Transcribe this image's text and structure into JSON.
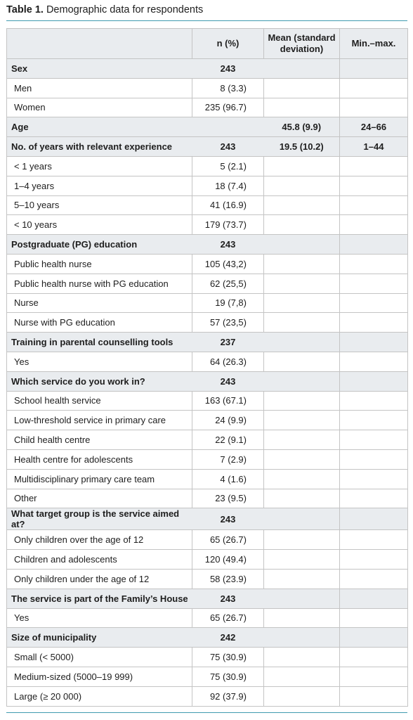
{
  "caption": {
    "label": "Table 1.",
    "text": "Demographic data for respondents"
  },
  "headers": [
    "",
    "n (%)",
    "Mean (standard deviation)",
    "Min.–max."
  ],
  "rows": [
    {
      "type": "cat",
      "label": "Sex",
      "n": "243",
      "mean": "",
      "range": ""
    },
    {
      "type": "sub",
      "label": "Men",
      "n": "8 (3.3)",
      "mean": "",
      "range": ""
    },
    {
      "type": "sub",
      "label": "Women",
      "n": "235 (96.7)",
      "mean": "",
      "range": ""
    },
    {
      "type": "cat",
      "label": "Age",
      "n": "",
      "mean": "45.8 (9.9)",
      "range": "24–66"
    },
    {
      "type": "cat",
      "label": "No. of years with relevant experience",
      "n": "243",
      "mean": "19.5 (10.2)",
      "range": "1–44"
    },
    {
      "type": "sub",
      "label": "< 1 years",
      "n": "5 (2.1)",
      "mean": "",
      "range": ""
    },
    {
      "type": "sub",
      "label": "1–4 years",
      "n": "18 (7.4)",
      "mean": "",
      "range": ""
    },
    {
      "type": "sub",
      "label": "5–10 years",
      "n": "41 (16.9)",
      "mean": "",
      "range": ""
    },
    {
      "type": "sub",
      "label": "< 10 years",
      "n": "179 (73.7)",
      "mean": "",
      "range": ""
    },
    {
      "type": "cat",
      "label": "Postgraduate (PG) education",
      "n": "243",
      "mean": "",
      "range": ""
    },
    {
      "type": "sub",
      "label": "Public health nurse",
      "n": "105 (43,2)",
      "mean": "",
      "range": ""
    },
    {
      "type": "sub",
      "label": "Public health nurse with PG education",
      "n": "62 (25,5)",
      "mean": "",
      "range": ""
    },
    {
      "type": "sub",
      "label": "Nurse",
      "n": "19 (7,8)",
      "mean": "",
      "range": ""
    },
    {
      "type": "sub",
      "label": "Nurse with PG education",
      "n": "57 (23,5)",
      "mean": "",
      "range": ""
    },
    {
      "type": "cat",
      "label": "Training in parental counselling tools",
      "n": "237",
      "mean": "",
      "range": ""
    },
    {
      "type": "sub",
      "label": "Yes",
      "n": "64 (26.3)",
      "mean": "",
      "range": ""
    },
    {
      "type": "cat",
      "label": "Which service do you work in?",
      "n": "243",
      "mean": "",
      "range": ""
    },
    {
      "type": "sub",
      "label": "School health service",
      "n": "163 (67.1)",
      "mean": "",
      "range": ""
    },
    {
      "type": "sub",
      "label": "Low-threshold service in primary care",
      "n": "24 (9.9)",
      "mean": "",
      "range": ""
    },
    {
      "type": "sub",
      "label": "Child health centre",
      "n": "22 (9.1)",
      "mean": "",
      "range": ""
    },
    {
      "type": "sub",
      "label": "Health centre for adolescents",
      "n": "7 (2.9)",
      "mean": "",
      "range": ""
    },
    {
      "type": "sub",
      "label": "Multidisciplinary primary care team",
      "n": "4 (1.6)",
      "mean": "",
      "range": ""
    },
    {
      "type": "sub",
      "label": "Other",
      "n": "23 (9.5)",
      "mean": "",
      "range": ""
    },
    {
      "type": "cat",
      "label": "What target group is the service aimed at?",
      "n": "243",
      "mean": "",
      "range": ""
    },
    {
      "type": "sub",
      "label": "Only children over the age of 12",
      "n": "65 (26.7)",
      "mean": "",
      "range": ""
    },
    {
      "type": "sub",
      "label": "Children and adolescents",
      "n": "120 (49.4)",
      "mean": "",
      "range": ""
    },
    {
      "type": "sub",
      "label": "Only children under the age of 12",
      "n": "58 (23.9)",
      "mean": "",
      "range": ""
    },
    {
      "type": "cat",
      "label": "The service is part of the Family’s House",
      "n": "243",
      "mean": "",
      "range": ""
    },
    {
      "type": "sub",
      "label": "Yes",
      "n": "65 (26.7)",
      "mean": "",
      "range": ""
    },
    {
      "type": "cat",
      "label": "Size of municipality",
      "n": "242",
      "mean": "",
      "range": ""
    },
    {
      "type": "sub",
      "label": "Small (< 5000)",
      "n": "75 (30.9)",
      "mean": "",
      "range": ""
    },
    {
      "type": "sub",
      "label": "Medium-sized (5000–19 999)",
      "n": "75 (30.9)",
      "mean": "",
      "range": ""
    },
    {
      "type": "sub",
      "label": "Large (≥ 20 000)",
      "n": "92 (37.9)",
      "mean": "",
      "range": ""
    }
  ]
}
